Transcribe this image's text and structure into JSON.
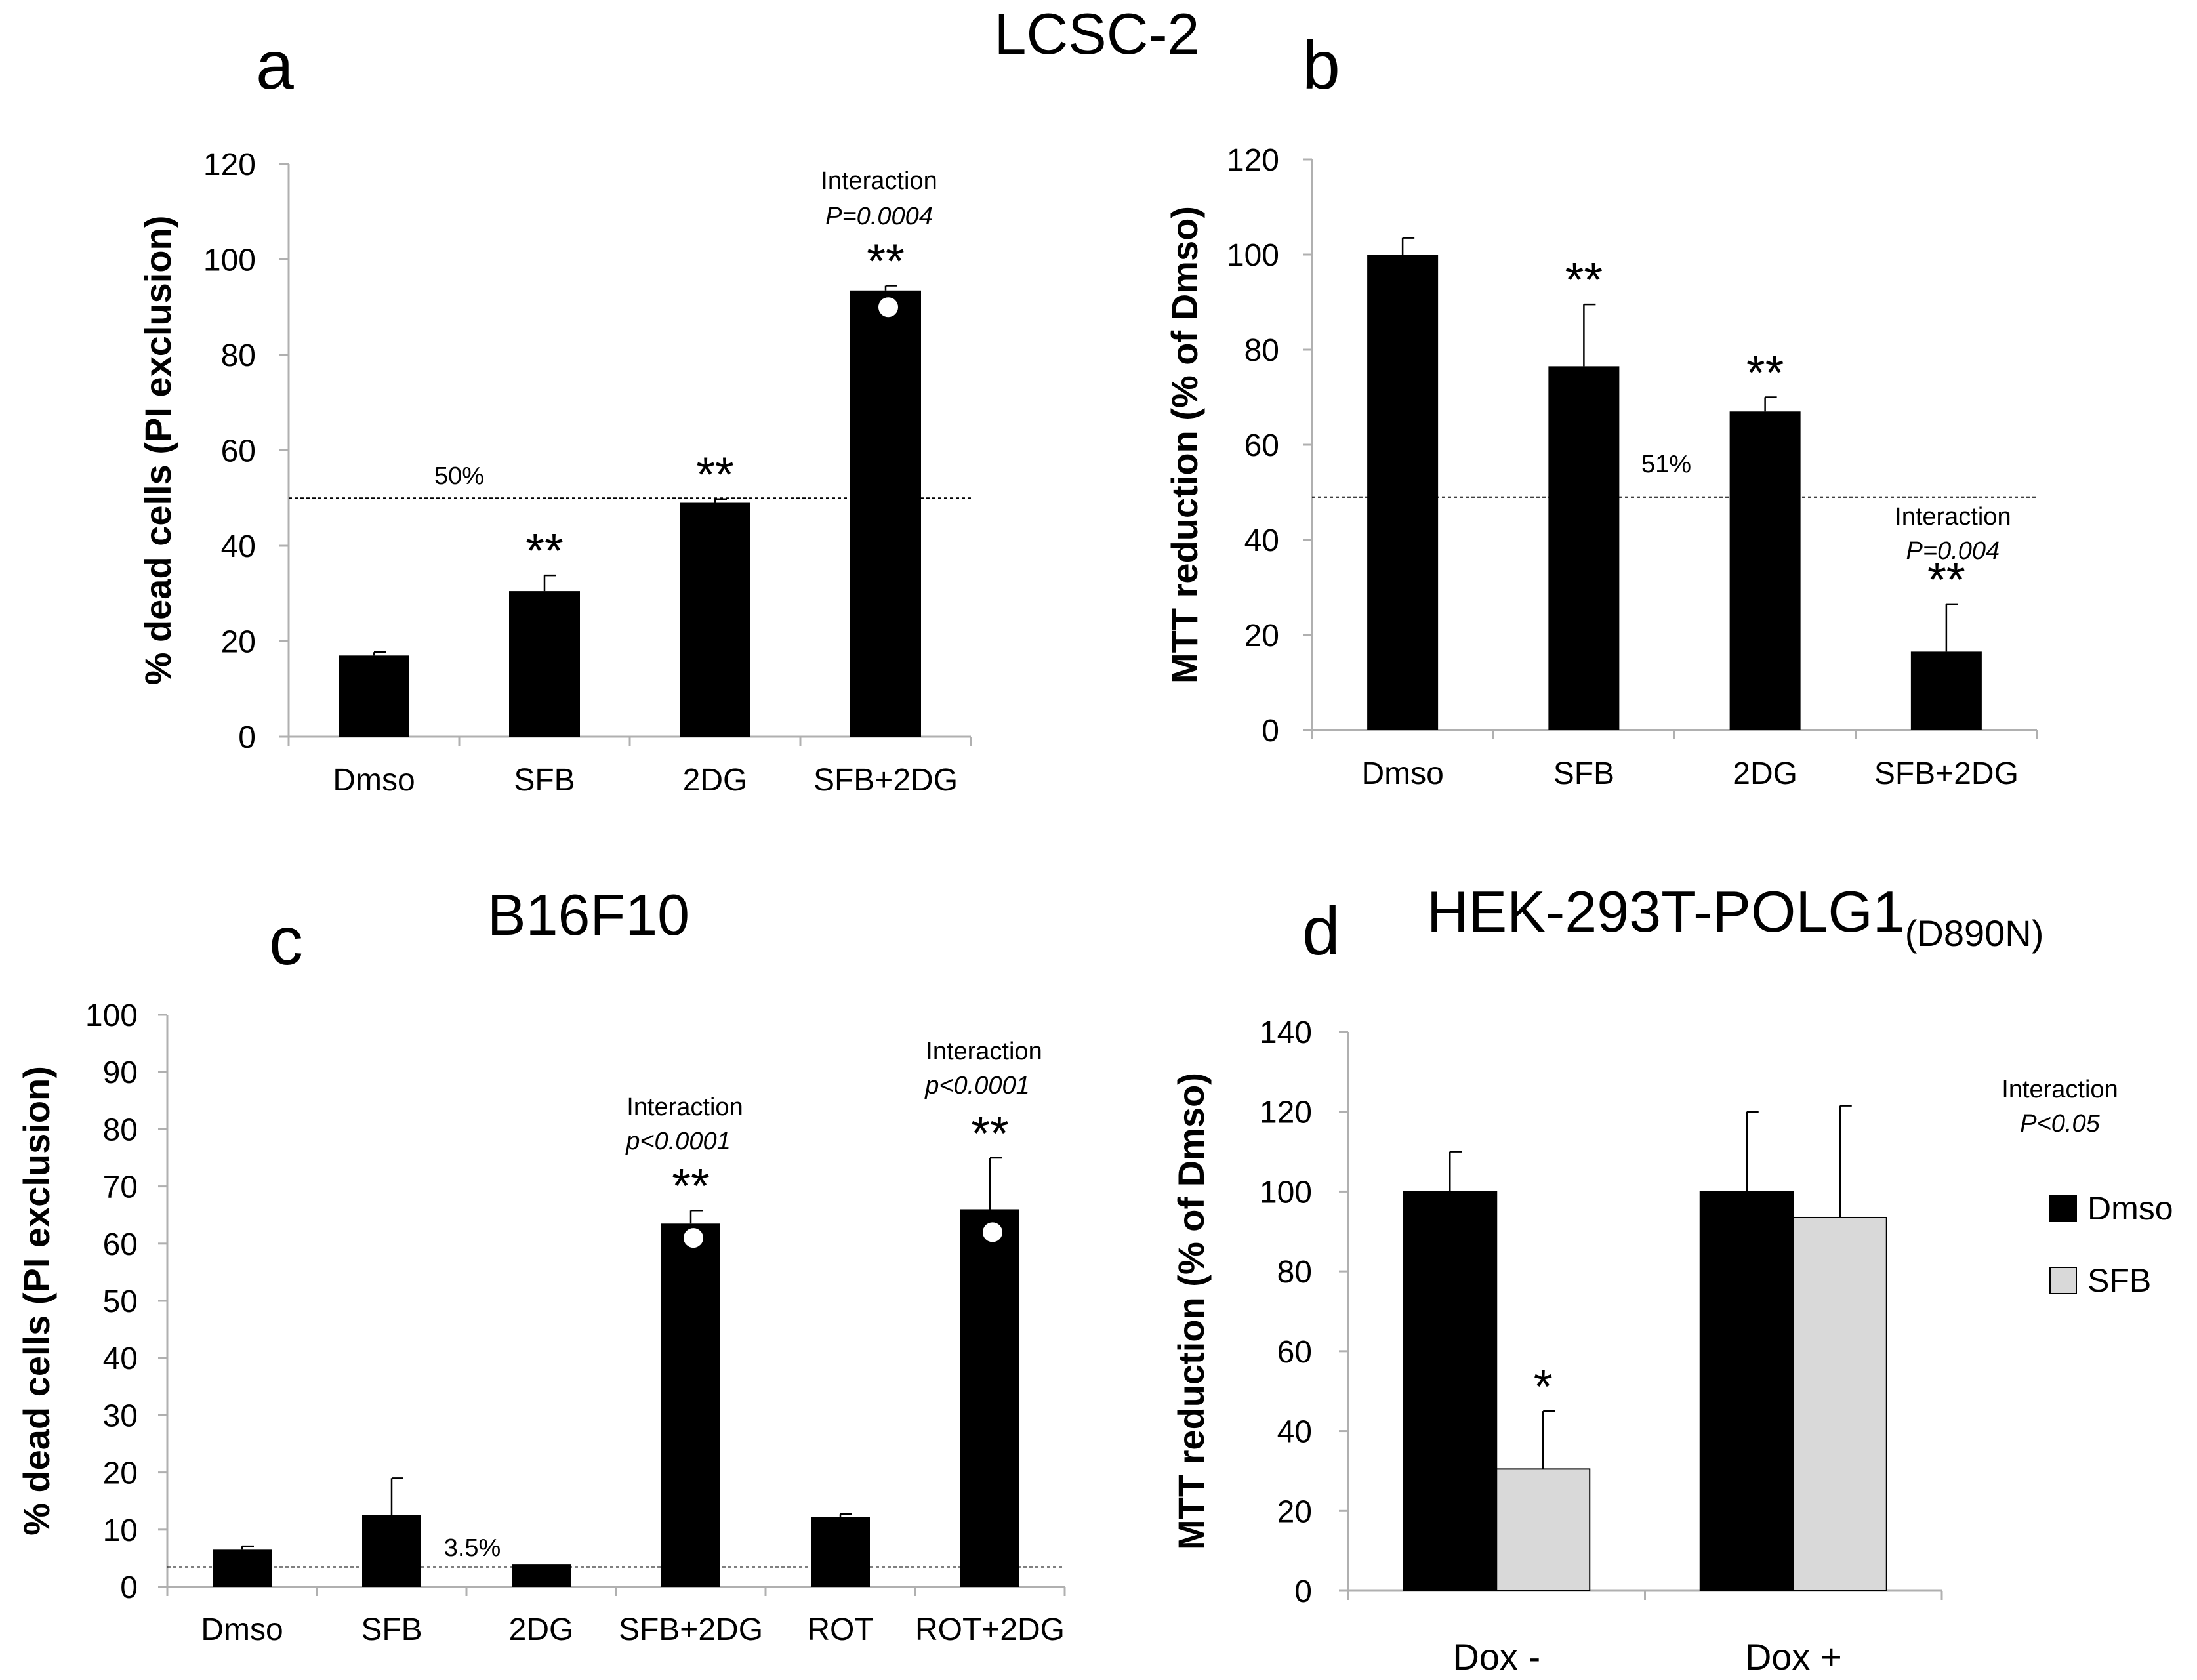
{
  "colors": {
    "primary": "#000000",
    "secondary": "#d9d9d9",
    "axis": "#b0b0b0",
    "marker": "#ffffff"
  },
  "titles": {
    "top": "LCSC-2",
    "c": "B16F10",
    "d_main": "HEK-293T-POLG1",
    "d_sub": "(D890N)"
  },
  "chart_data": [
    {
      "panel": "a",
      "type": "bar",
      "title": "LCSC-2",
      "ylabel": "% dead cells (PI exclusion)",
      "xlabel": "",
      "ylim": [
        0,
        120
      ],
      "yticks": [
        "0",
        "20",
        "40",
        "60",
        "80",
        "100",
        "120"
      ],
      "categories": [
        "Dmso",
        "SFB",
        "2DG",
        "SFB+2DG"
      ],
      "values": [
        17,
        30.5,
        49,
        93.5
      ],
      "errors": [
        0.7,
        3.3,
        0.8,
        1
      ],
      "significance": [
        "",
        "**",
        "**",
        "**"
      ],
      "expected_markers": [
        null,
        null,
        null,
        90
      ],
      "reference_line": {
        "value": 50,
        "label": "50%"
      },
      "annotation": {
        "label": "Interaction",
        "value": "P=0.0004",
        "category": 3
      }
    },
    {
      "panel": "b",
      "type": "bar",
      "ylabel": "MTT reduction (% of Dmso)",
      "xlabel": "",
      "ylim": [
        0,
        120
      ],
      "yticks": [
        "0",
        "20",
        "40",
        "60",
        "80",
        "100",
        "120"
      ],
      "categories": [
        "Dmso",
        "SFB",
        "2DG",
        "SFB+2DG"
      ],
      "values": [
        100,
        76.5,
        67,
        16.5
      ],
      "errors": [
        3.5,
        13,
        3,
        10
      ],
      "significance": [
        "",
        "**",
        "**",
        "**"
      ],
      "expected_markers": [
        null,
        null,
        null,
        null
      ],
      "reference_line": {
        "value": 49,
        "label": "51%"
      },
      "annotation": {
        "label": "Interaction",
        "value": "P=0.004",
        "category": 3
      }
    },
    {
      "panel": "c",
      "type": "bar",
      "title": "B16F10",
      "ylabel": "% dead cells (PI exclusion)",
      "xlabel": "",
      "ylim": [
        0,
        100
      ],
      "yticks": [
        "0",
        "10",
        "20",
        "30",
        "40",
        "50",
        "60",
        "70",
        "80",
        "90",
        "100"
      ],
      "categories": [
        "Dmso",
        "SFB",
        "2DG",
        "SFB+2DG",
        "ROT",
        "ROT+2DG"
      ],
      "values": [
        6.5,
        12.5,
        4,
        63.5,
        12.2,
        66
      ],
      "errors": [
        0.6,
        6.5,
        0,
        2.3,
        0.5,
        9
      ],
      "significance": [
        "",
        "",
        "",
        "**",
        "",
        "**"
      ],
      "expected_markers": [
        null,
        null,
        null,
        61,
        null,
        62
      ],
      "reference_line": {
        "value": 3.5,
        "label": "3.5%"
      },
      "annotations": [
        {
          "label": "Interaction",
          "value": "p<0.0001",
          "category": 3
        },
        {
          "label": "Interaction",
          "value": "p<0.0001",
          "category": 5
        }
      ]
    },
    {
      "panel": "d",
      "type": "bar",
      "title": "HEK-293T-POLG1(D890N)",
      "ylabel": "MTT reduction (% of Dmso)",
      "xlabel": "",
      "ylim": [
        0,
        140
      ],
      "yticks": [
        "0",
        "20",
        "40",
        "60",
        "80",
        "100",
        "120",
        "140"
      ],
      "categories": [
        "Dox -",
        "Dox +"
      ],
      "series": [
        {
          "name": "Dmso",
          "values": [
            100,
            100
          ],
          "errors": [
            10,
            20
          ],
          "significance": [
            "",
            ""
          ]
        },
        {
          "name": "SFB",
          "values": [
            30.5,
            93.5
          ],
          "errors": [
            14.5,
            28
          ],
          "significance": [
            "*",
            ""
          ]
        }
      ],
      "legend": {
        "position": "right",
        "entries": [
          "Dmso",
          "SFB"
        ]
      },
      "annotation": {
        "label": "Interaction",
        "value": "P<0.05"
      }
    }
  ]
}
